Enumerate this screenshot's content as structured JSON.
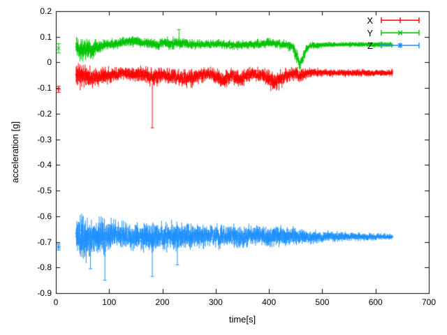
{
  "chart_data": {
    "type": "scatter",
    "plot_style": "errorbars",
    "title": "",
    "xlabel": "time[s]",
    "ylabel": "acceleration [g]",
    "xlim": [
      0,
      700
    ],
    "ylim": [
      -0.9,
      0.2
    ],
    "grid": false,
    "legend_position": "top-right-inside",
    "x_ticks": [
      {
        "v": 0,
        "label": "0"
      },
      {
        "v": 100,
        "label": "100"
      },
      {
        "v": 200,
        "label": "200"
      },
      {
        "v": 300,
        "label": "300"
      },
      {
        "v": 400,
        "label": "400"
      },
      {
        "v": 500,
        "label": "500"
      },
      {
        "v": 600,
        "label": "600"
      },
      {
        "v": 700,
        "label": "700"
      }
    ],
    "y_ticks": [
      {
        "v": 0.2,
        "label": "0.2"
      },
      {
        "v": 0.1,
        "label": "0.1"
      },
      {
        "v": 0,
        "label": "0"
      },
      {
        "v": -0.1,
        "label": "-0.1"
      },
      {
        "v": -0.2,
        "label": "-0.2"
      },
      {
        "v": -0.3,
        "label": "-0.3"
      },
      {
        "v": -0.4,
        "label": "-0.4"
      },
      {
        "v": -0.5,
        "label": "-0.5"
      },
      {
        "v": -0.6,
        "label": "-0.6"
      },
      {
        "v": -0.7,
        "label": "-0.7"
      },
      {
        "v": -0.8,
        "label": "-0.8"
      },
      {
        "v": -0.9,
        "label": "-0.9"
      }
    ],
    "series": [
      {
        "name": "X",
        "color": "#ff0000",
        "marker": "plus",
        "seed": 11,
        "mean_level": -0.05,
        "isolated_points": [
          {
            "t": 5,
            "y": -0.105,
            "err": 0.012
          }
        ],
        "band": {
          "t_start": 38,
          "t_end": 632,
          "envelope_t_mean_spread": [
            [
              38,
              -0.05,
              0.055
            ],
            [
              48,
              -0.05,
              0.05
            ],
            [
              60,
              -0.055,
              0.04
            ],
            [
              75,
              -0.06,
              0.035
            ],
            [
              90,
              -0.05,
              0.035
            ],
            [
              110,
              -0.045,
              0.03
            ],
            [
              130,
              -0.04,
              0.025
            ],
            [
              150,
              -0.045,
              0.03
            ],
            [
              170,
              -0.05,
              0.035
            ],
            [
              185,
              -0.06,
              0.04
            ],
            [
              200,
              -0.05,
              0.03
            ],
            [
              220,
              -0.055,
              0.035
            ],
            [
              240,
              -0.065,
              0.035
            ],
            [
              255,
              -0.06,
              0.035
            ],
            [
              270,
              -0.05,
              0.03
            ],
            [
              290,
              -0.045,
              0.025
            ],
            [
              305,
              -0.06,
              0.035
            ],
            [
              315,
              -0.07,
              0.035
            ],
            [
              330,
              -0.05,
              0.03
            ],
            [
              345,
              -0.065,
              0.035
            ],
            [
              360,
              -0.05,
              0.03
            ],
            [
              375,
              -0.045,
              0.025
            ],
            [
              390,
              -0.05,
              0.03
            ],
            [
              405,
              -0.075,
              0.04
            ],
            [
              418,
              -0.07,
              0.04
            ],
            [
              432,
              -0.05,
              0.03
            ],
            [
              445,
              -0.045,
              0.025
            ],
            [
              460,
              -0.05,
              0.03
            ],
            [
              475,
              -0.04,
              0.02
            ],
            [
              500,
              -0.04,
              0.016
            ],
            [
              540,
              -0.04,
              0.015
            ],
            [
              590,
              -0.042,
              0.014
            ],
            [
              632,
              -0.04,
              0.014
            ]
          ]
        },
        "spikes": [
          {
            "t": 181,
            "from": -0.08,
            "to": -0.255
          }
        ]
      },
      {
        "name": "Y",
        "color": "#00c400",
        "marker": "cross",
        "seed": 22,
        "mean_level": 0.07,
        "isolated_points": [
          {
            "t": 5,
            "y": 0.055,
            "err": 0.018
          }
        ],
        "band": {
          "t_start": 38,
          "t_end": 632,
          "envelope_t_mean_spread": [
            [
              38,
              0.07,
              0.045
            ],
            [
              48,
              0.055,
              0.05
            ],
            [
              60,
              0.05,
              0.045
            ],
            [
              72,
              0.055,
              0.035
            ],
            [
              85,
              0.065,
              0.025
            ],
            [
              100,
              0.07,
              0.02
            ],
            [
              115,
              0.075,
              0.02
            ],
            [
              130,
              0.08,
              0.022
            ],
            [
              145,
              0.082,
              0.022
            ],
            [
              160,
              0.08,
              0.02
            ],
            [
              175,
              0.072,
              0.02
            ],
            [
              190,
              0.07,
              0.02
            ],
            [
              205,
              0.074,
              0.022
            ],
            [
              225,
              0.077,
              0.026
            ],
            [
              245,
              0.072,
              0.02
            ],
            [
              265,
              0.07,
              0.018
            ],
            [
              285,
              0.07,
              0.018
            ],
            [
              305,
              0.072,
              0.018
            ],
            [
              325,
              0.068,
              0.018
            ],
            [
              345,
              0.066,
              0.018
            ],
            [
              365,
              0.07,
              0.018
            ],
            [
              385,
              0.072,
              0.018
            ],
            [
              400,
              0.077,
              0.02
            ],
            [
              415,
              0.072,
              0.018
            ],
            [
              430,
              0.07,
              0.018
            ],
            [
              443,
              0.06,
              0.022
            ],
            [
              452,
              0.025,
              0.03
            ],
            [
              458,
              -0.01,
              0.022
            ],
            [
              464,
              0.02,
              0.025
            ],
            [
              470,
              0.055,
              0.018
            ],
            [
              478,
              0.066,
              0.014
            ],
            [
              500,
              0.068,
              0.012
            ],
            [
              550,
              0.07,
              0.011
            ],
            [
              632,
              0.07,
              0.011
            ]
          ]
        },
        "spikes": [
          {
            "t": 231,
            "from": 0.085,
            "to": 0.128
          }
        ]
      },
      {
        "name": "Z",
        "color": "#1e90ff",
        "marker": "asterisk",
        "seed": 33,
        "mean_level": -0.68,
        "isolated_points": [
          {
            "t": 5,
            "y": -0.72,
            "err": 0.012
          }
        ],
        "band": {
          "t_start": 38,
          "t_end": 632,
          "envelope_t_mean_spread": [
            [
              38,
              -0.68,
              0.065
            ],
            [
              46,
              -0.69,
              0.085
            ],
            [
              56,
              -0.69,
              0.09
            ],
            [
              66,
              -0.685,
              0.08
            ],
            [
              76,
              -0.68,
              0.07
            ],
            [
              88,
              -0.685,
              0.08
            ],
            [
              98,
              -0.68,
              0.07
            ],
            [
              110,
              -0.675,
              0.055
            ],
            [
              125,
              -0.675,
              0.05
            ],
            [
              140,
              -0.678,
              0.05
            ],
            [
              155,
              -0.68,
              0.055
            ],
            [
              170,
              -0.68,
              0.06
            ],
            [
              182,
              -0.68,
              0.065
            ],
            [
              195,
              -0.675,
              0.05
            ],
            [
              210,
              -0.68,
              0.055
            ],
            [
              225,
              -0.68,
              0.06
            ],
            [
              240,
              -0.678,
              0.055
            ],
            [
              255,
              -0.675,
              0.05
            ],
            [
              270,
              -0.675,
              0.048
            ],
            [
              285,
              -0.675,
              0.045
            ],
            [
              300,
              -0.676,
              0.045
            ],
            [
              315,
              -0.68,
              0.05
            ],
            [
              330,
              -0.676,
              0.045
            ],
            [
              345,
              -0.678,
              0.045
            ],
            [
              360,
              -0.68,
              0.045
            ],
            [
              375,
              -0.676,
              0.04
            ],
            [
              390,
              -0.678,
              0.042
            ],
            [
              405,
              -0.68,
              0.045
            ],
            [
              420,
              -0.676,
              0.04
            ],
            [
              435,
              -0.678,
              0.038
            ],
            [
              450,
              -0.68,
              0.034
            ],
            [
              470,
              -0.68,
              0.03
            ],
            [
              490,
              -0.68,
              0.026
            ],
            [
              510,
              -0.68,
              0.022
            ],
            [
              535,
              -0.68,
              0.019
            ],
            [
              560,
              -0.68,
              0.016
            ],
            [
              590,
              -0.68,
              0.014
            ],
            [
              632,
              -0.68,
              0.012
            ]
          ]
        },
        "spikes": [
          {
            "t": 65,
            "from": -0.7,
            "to": -0.805
          },
          {
            "t": 92,
            "from": -0.72,
            "to": -0.85
          },
          {
            "t": 181,
            "from": -0.72,
            "to": -0.835
          },
          {
            "t": 228,
            "from": -0.71,
            "to": -0.79
          }
        ]
      }
    ]
  }
}
